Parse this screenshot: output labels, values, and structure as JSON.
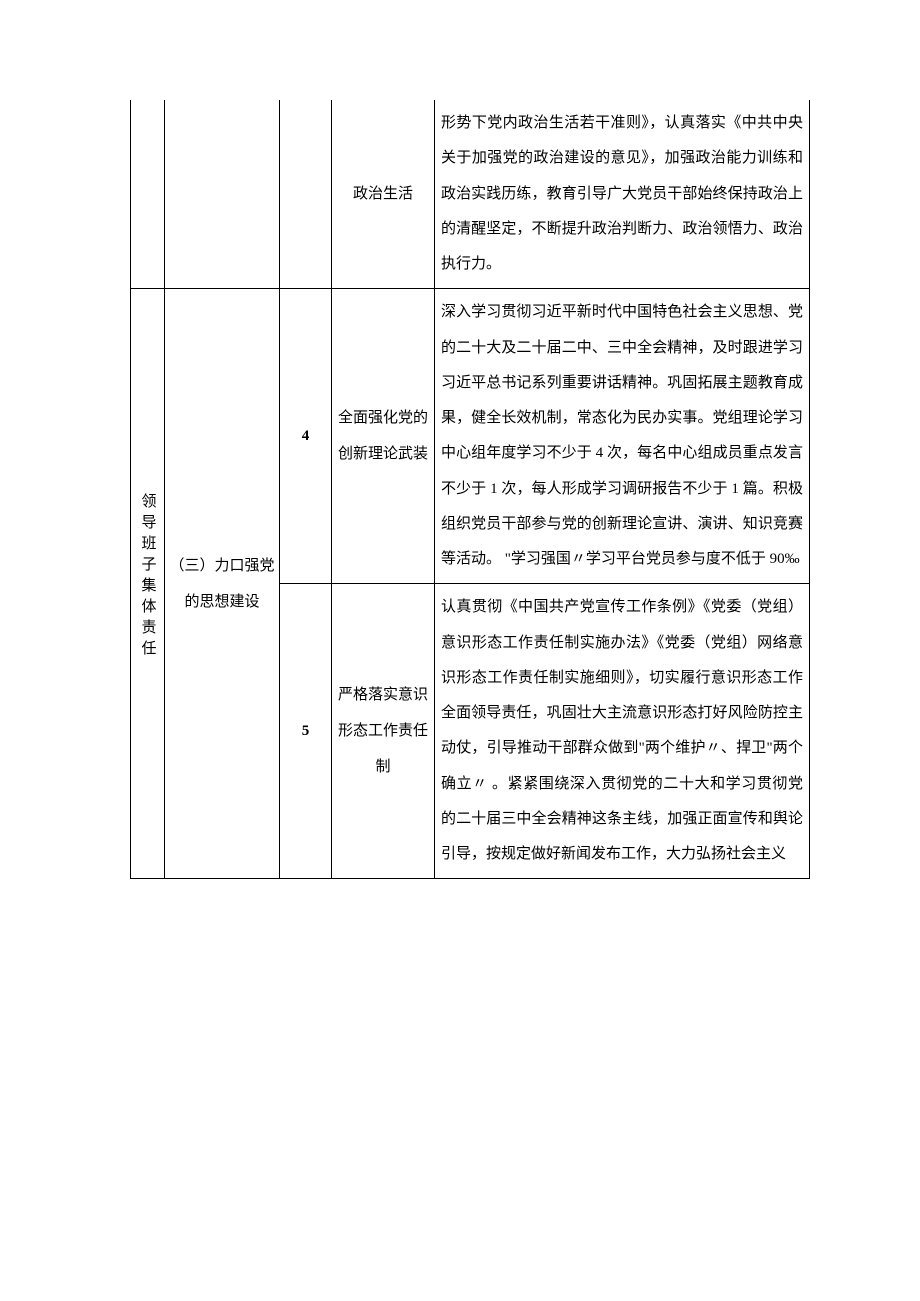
{
  "table": {
    "background_color": "#ffffff",
    "border_color": "#000000",
    "font_family": "SimSun",
    "base_font_size": 15,
    "line_height": 2.4,
    "columns": {
      "col1_width": 34,
      "col2_width": 115,
      "col3_width": 52,
      "col4_width": 103
    },
    "rows": [
      {
        "col1": "",
        "col2": "",
        "col3": "",
        "col4": "政治生活",
        "col5": "形势下党内政治生活若干准则》，认真落实《中共中央关于加强党的政治建设的意见》，加强政治能力训练和政治实践历练，教育引导广大党员干部始终保持政治上的清醒坚定，不断提升政治判断力、政治领悟力、政治执行力。"
      },
      {
        "col1": "领导班子集体责任",
        "col2": "（三）力口强党的思想建设",
        "col3": "4",
        "col4": "全面强化党的创新理论武装",
        "col5": "深入学习贯彻习近平新时代中国特色社会主义思想、党的二十大及二十届二中、三中全会精神，及时跟进学习习近平总书记系列重要讲话精神。巩固拓展主题教育成果，健全长效机制，常态化为民办实事。党组理论学习中心组年度学习不少于 4 次，每名中心组成员重点发言不少于 1 次，每人形成学习调研报告不少于 1 篇。积极组织党员干部参与党的创新理论宣讲、演讲、知识竞赛等活动。 \"学习强国〃学习平台党员参与度不低于 90‰"
      },
      {
        "col3": "5",
        "col4": "严格落实意识形态工作责任制",
        "col5": "认真贯彻《中国共产党宣传工作条例》《党委（党组）意识形态工作责任制实施办法》《党委（党组）网络意识形态工作责任制实施细则》，切实履行意识形态工作全面领导责任，巩固壮大主流意识形态打好风险防控主动仗，引导推动干部群众做到\"两个维护〃、捍卫\"两个确立〃 。紧紧围绕深入贯彻党的二十大和学习贯彻党的二十届三中全会精神这条主线，加强正面宣传和舆论引导，按规定做好新闻发布工作，大力弘扬社会主义"
      }
    ]
  }
}
